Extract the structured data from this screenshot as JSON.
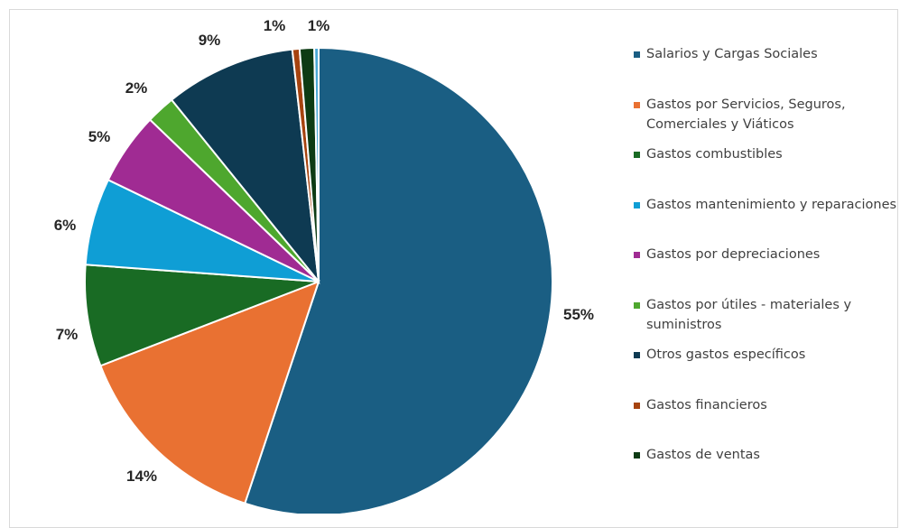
{
  "chart_data": {
    "type": "pie",
    "title": "",
    "slices": [
      {
        "name": "Salarios y Cargas Sociales",
        "value": 55,
        "label": "55%",
        "color": "#1a5e83"
      },
      {
        "name": "Gastos por Servicios, Seguros, Comerciales y Viáticos",
        "value": 14,
        "label": "14%",
        "color": "#e97132"
      },
      {
        "name": "Gastos combustibles",
        "value": 7,
        "label": "7%",
        "color": "#196b24"
      },
      {
        "name": "Gastos mantenimiento y reparaciones",
        "value": 6,
        "label": "6%",
        "color": "#0f9ed5"
      },
      {
        "name": "Gastos por depreciaciones",
        "value": 5,
        "label": "5%",
        "color": "#a02b93"
      },
      {
        "name": "Gastos por útiles - materiales y suministros",
        "value": 2,
        "label": "2%",
        "color": "#4ea72e"
      },
      {
        "name": "Otros gastos específicos",
        "value": 9,
        "label": "9%",
        "color": "#0e3a52"
      },
      {
        "name": "Gastos financieros",
        "value": 0.5,
        "label": "1%",
        "color": "#a6430f"
      },
      {
        "name": "Gastos de ventas",
        "value": 1,
        "label": "1%",
        "color": "#0d3b14"
      },
      {
        "name": "",
        "value": 0.3,
        "label": "",
        "color": "#4aa8d6"
      }
    ],
    "legend_position": "right"
  }
}
